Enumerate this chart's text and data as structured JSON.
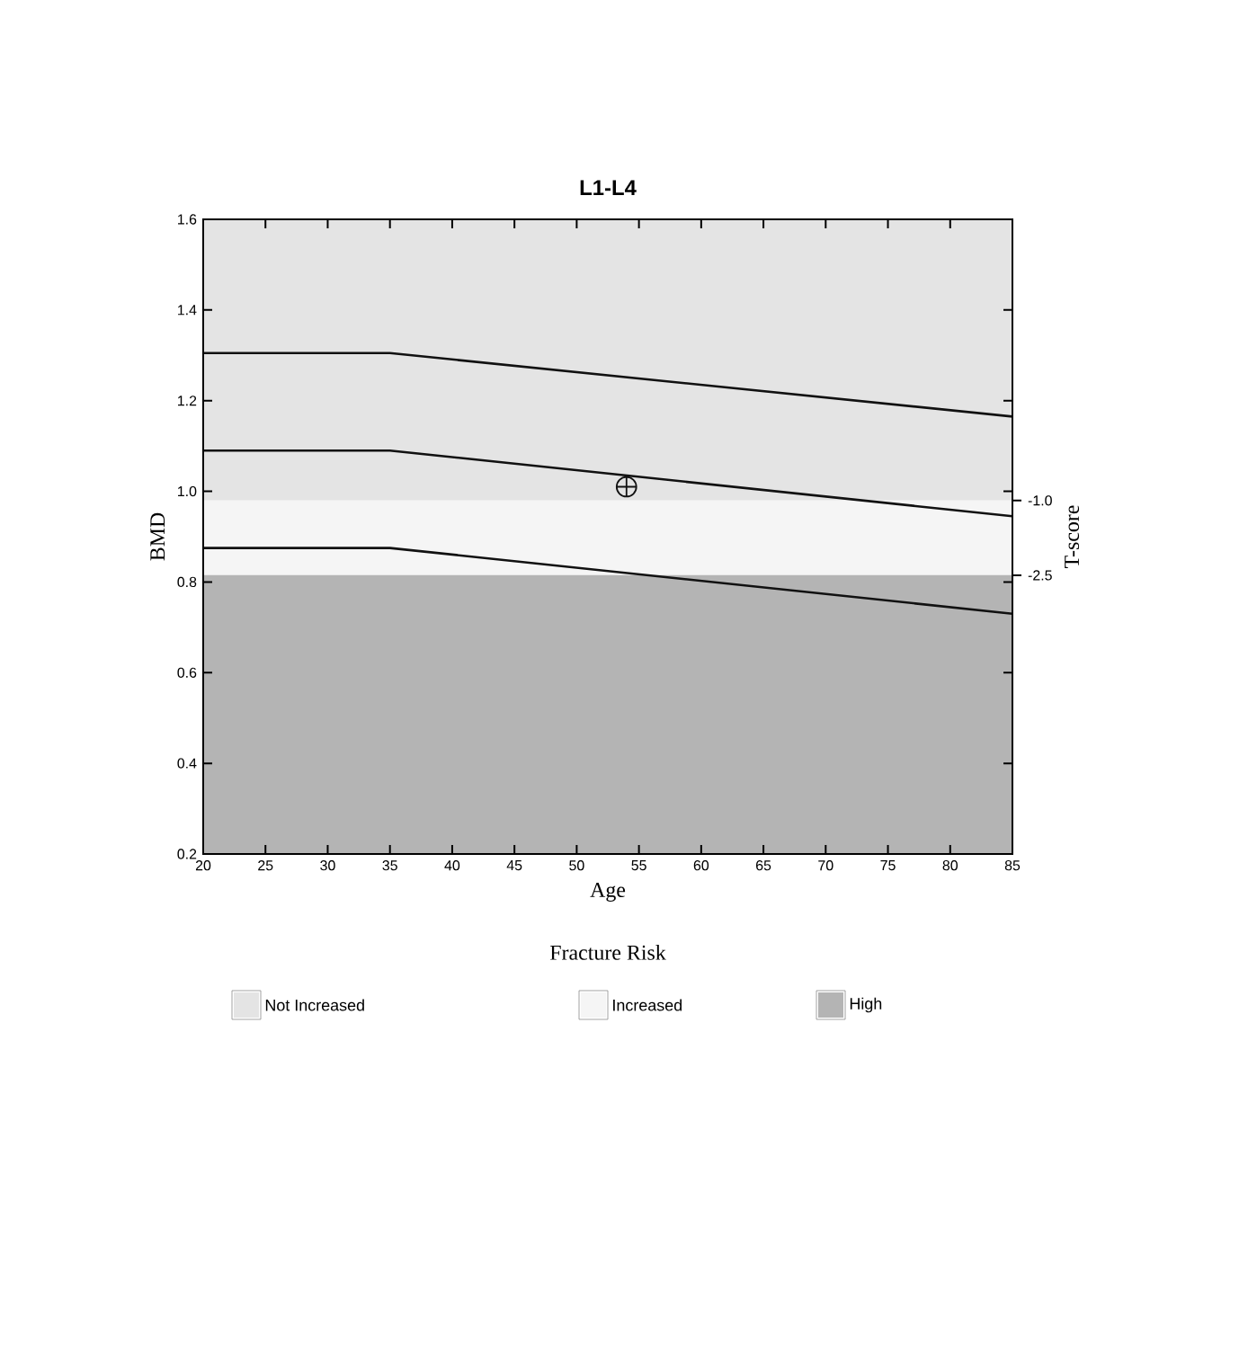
{
  "chart_data": {
    "type": "line",
    "title": "L1-L4",
    "xlabel": "Age",
    "ylabel": "BMD",
    "y2label": "T-score",
    "legend_title": "Fracture Risk",
    "legend": "bottom",
    "marker": "none",
    "line_style": "solid",
    "xlim": [
      20,
      85
    ],
    "xticks": [
      20,
      25,
      30,
      35,
      40,
      45,
      50,
      55,
      60,
      65,
      70,
      75,
      80,
      85
    ],
    "ylim": [
      0.2,
      1.6
    ],
    "yticks": [
      0.2,
      0.4,
      0.6,
      0.8,
      {
        "value": 1.0,
        "label": "1.0"
      },
      1.2,
      1.4,
      1.6
    ],
    "y2lim": [
      -8.09,
      4.64
    ],
    "y2ticks": [
      {
        "value": -1.0,
        "label": "-1.0"
      },
      -2.5
    ],
    "bands": [
      {
        "axis": "y",
        "from": 0.98,
        "to": 1.6,
        "label": "Not Increased",
        "color": "#e4e4e4"
      },
      {
        "axis": "y",
        "from": 0.815,
        "to": 0.98,
        "label": "Increased",
        "color": "#f5f5f5"
      },
      {
        "axis": "y",
        "from": 0.2,
        "to": 0.815,
        "label": "High",
        "color": "#b4b4b4"
      }
    ],
    "series": [
      {
        "color": "#111111",
        "x": [
          20,
          35,
          85
        ],
        "values": [
          1.305,
          1.305,
          1.165
        ]
      },
      {
        "color": "#111111",
        "x": [
          20,
          35,
          85
        ],
        "values": [
          1.09,
          1.09,
          0.945
        ]
      },
      {
        "color": "#111111",
        "x": [
          20,
          35,
          85
        ],
        "values": [
          0.875,
          0.875,
          0.73
        ]
      },
      {
        "type": "scatter",
        "marker": "cross",
        "color": "#111111",
        "x": [
          54
        ],
        "values": [
          1.01
        ]
      }
    ]
  }
}
